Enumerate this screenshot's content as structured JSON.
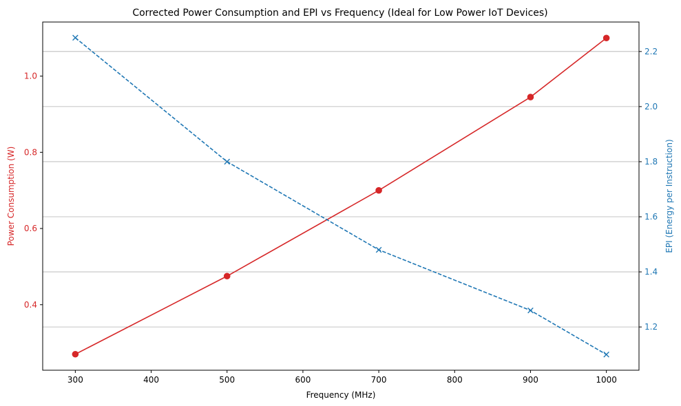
{
  "chart_data": {
    "type": "line",
    "title": "Corrected Power Consumption and EPI vs Frequency (Ideal for Low Power IoT Devices)",
    "xlabel": "Frequency (MHz)",
    "ylabel_left": "Power Consumption (W)",
    "ylabel_right": "EPI (Energy per Instruction)",
    "x": [
      300,
      500,
      700,
      900,
      1000
    ],
    "xlim": [
      257,
      1043
    ],
    "x_ticks": [
      300,
      400,
      500,
      600,
      700,
      800,
      900,
      1000
    ],
    "ylim_left": [
      0.228,
      1.142
    ],
    "y_ticks_left": [
      0.4,
      0.6,
      0.8,
      1.0
    ],
    "ylim_right": [
      1.043,
      2.307
    ],
    "y_ticks_right": [
      1.2,
      1.4,
      1.6,
      1.8,
      2.0,
      2.2
    ],
    "grid": "horizontal lines on right axis ticks",
    "series": [
      {
        "axis": "left",
        "values": [
          0.27,
          0.475,
          0.7,
          0.945,
          1.1
        ],
        "color": "#d62728",
        "marker": "circle",
        "line": "solid"
      },
      {
        "axis": "right",
        "values": [
          2.25,
          1.8,
          1.48,
          1.26,
          1.1
        ],
        "color": "#1f77b4",
        "marker": "x",
        "line": "dashed"
      }
    ],
    "colors": {
      "left_axis": "#d62728",
      "right_axis": "#1f77b4",
      "grid": "#b0b0b0"
    }
  }
}
